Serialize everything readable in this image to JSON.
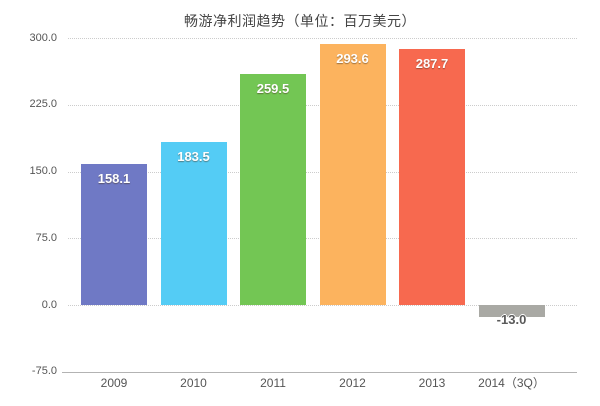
{
  "chart_data": {
    "type": "bar",
    "title": "畅游净利润趋势（单位：百万美元）",
    "categories": [
      "2009",
      "2010",
      "2011",
      "2012",
      "2013",
      "2014（3Q）"
    ],
    "values": [
      158.1,
      183.5,
      259.5,
      293.6,
      287.7,
      -13.0
    ],
    "value_labels": [
      "158.1",
      "183.5",
      "259.5",
      "293.6",
      "287.7",
      "-13.0"
    ],
    "bar_colors": [
      "#6f79c5",
      "#54ccf5",
      "#73c654",
      "#fcb35e",
      "#f7694f",
      "#a9a9a4"
    ],
    "ylim": [
      -75,
      300
    ],
    "yticks": [
      300,
      225,
      150,
      75,
      0,
      -75
    ],
    "ytick_labels": [
      "300.0",
      "225.0",
      "150.0",
      "75.0",
      "0.0",
      "-75.0"
    ],
    "xlabel": "",
    "ylabel": "",
    "grid": "horizontal-dotted",
    "legend": "none",
    "colors": {
      "background": "#ffffff",
      "gridline": "#cccccc",
      "axis_line": "#b3b3b3",
      "title_text": "#444444",
      "tick_text": "#555555",
      "bar_value_text": "#ffffff",
      "negative_value_text": "#5a5a5a"
    }
  }
}
